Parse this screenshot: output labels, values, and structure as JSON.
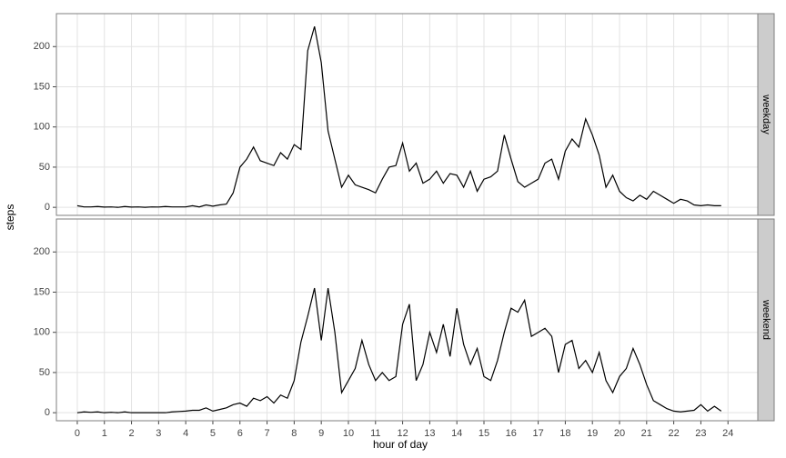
{
  "chart_data": [
    {
      "type": "line",
      "strip": "weekday",
      "ylabel": "steps",
      "color": "#000000",
      "x": [
        0,
        0.25,
        0.5,
        0.75,
        1,
        1.25,
        1.5,
        1.75,
        2,
        2.25,
        2.5,
        2.75,
        3,
        3.25,
        3.5,
        3.75,
        4,
        4.25,
        4.5,
        4.75,
        5,
        5.25,
        5.5,
        5.75,
        6,
        6.25,
        6.5,
        6.75,
        7,
        7.25,
        7.5,
        7.75,
        8,
        8.25,
        8.5,
        8.75,
        9,
        9.25,
        9.5,
        9.75,
        10,
        10.25,
        10.5,
        10.75,
        11,
        11.25,
        11.5,
        11.75,
        12,
        12.25,
        12.5,
        12.75,
        13,
        13.25,
        13.5,
        13.75,
        14,
        14.25,
        14.5,
        14.75,
        15,
        15.25,
        15.5,
        15.75,
        16,
        16.25,
        16.5,
        16.75,
        17,
        17.25,
        17.5,
        17.75,
        18,
        18.25,
        18.5,
        18.75,
        19,
        19.25,
        19.5,
        19.75,
        20,
        20.25,
        20.5,
        20.75,
        21,
        21.25,
        21.5,
        21.75,
        22,
        22.25,
        22.5,
        22.75,
        23,
        23.25,
        23.5,
        23.75
      ],
      "values": [
        2,
        0.5,
        0.5,
        1,
        0.3,
        0.5,
        0,
        1,
        0.3,
        0.5,
        0,
        0.5,
        0.4,
        1,
        0.5,
        0.5,
        0.5,
        2,
        0.5,
        3,
        1.5,
        3,
        4,
        18,
        50,
        60,
        75,
        58,
        55,
        52,
        68,
        60,
        78,
        72,
        195,
        225,
        180,
        95,
        60,
        25,
        40,
        28,
        25,
        22,
        18,
        35,
        50,
        52,
        80,
        45,
        55,
        30,
        35,
        45,
        30,
        42,
        40,
        25,
        45,
        20,
        35,
        38,
        45,
        90,
        60,
        32,
        25,
        30,
        35,
        55,
        60,
        35,
        70,
        85,
        75,
        110,
        90,
        65,
        25,
        40,
        20,
        12,
        8,
        15,
        10,
        20,
        15,
        10,
        5,
        10,
        8,
        3,
        2,
        3,
        2,
        2
      ],
      "xlim": [
        -0.77,
        25.1
      ],
      "ylim": [
        -10,
        241
      ],
      "yticks": [
        0,
        50,
        100,
        150,
        200
      ],
      "grid": true
    },
    {
      "type": "line",
      "strip": "weekend",
      "xlabel": "hour of day",
      "color": "#000000",
      "x": [
        0,
        0.25,
        0.5,
        0.75,
        1,
        1.25,
        1.5,
        1.75,
        2,
        2.25,
        2.5,
        2.75,
        3,
        3.25,
        3.5,
        3.75,
        4,
        4.25,
        4.5,
        4.75,
        5,
        5.25,
        5.5,
        5.75,
        6,
        6.25,
        6.5,
        6.75,
        7,
        7.25,
        7.5,
        7.75,
        8,
        8.25,
        8.5,
        8.75,
        9,
        9.25,
        9.5,
        9.75,
        10,
        10.25,
        10.5,
        10.75,
        11,
        11.25,
        11.5,
        11.75,
        12,
        12.25,
        12.5,
        12.75,
        13,
        13.25,
        13.5,
        13.75,
        14,
        14.25,
        14.5,
        14.75,
        15,
        15.25,
        15.5,
        15.75,
        16,
        16.25,
        16.5,
        16.75,
        17,
        17.25,
        17.5,
        17.75,
        18,
        18.25,
        18.5,
        18.75,
        19,
        19.25,
        19.5,
        19.75,
        20,
        20.25,
        20.5,
        20.75,
        21,
        21.25,
        21.5,
        21.75,
        22,
        22.25,
        22.5,
        22.75,
        23,
        23.25,
        23.5,
        23.75
      ],
      "values": [
        0,
        1,
        0.5,
        1,
        0,
        0.5,
        0,
        1,
        0,
        0,
        0,
        0,
        0,
        0,
        1,
        1.5,
        2,
        3,
        3,
        6,
        2,
        4,
        6,
        10,
        12,
        8,
        18,
        15,
        20,
        12,
        22,
        18,
        40,
        88,
        120,
        155,
        90,
        155,
        100,
        25,
        40,
        55,
        90,
        60,
        40,
        50,
        40,
        45,
        110,
        135,
        40,
        60,
        100,
        75,
        110,
        70,
        130,
        85,
        60,
        80,
        45,
        40,
        65,
        100,
        130,
        125,
        140,
        95,
        100,
        105,
        95,
        50,
        85,
        90,
        55,
        65,
        50,
        75,
        40,
        25,
        45,
        55,
        80,
        60,
        35,
        15,
        10,
        5,
        2,
        1,
        2,
        3,
        10,
        2,
        8,
        2
      ],
      "xlim": [
        -0.77,
        25.1
      ],
      "xticks": [
        0,
        1,
        2,
        3,
        4,
        5,
        6,
        7,
        8,
        9,
        10,
        11,
        12,
        13,
        14,
        15,
        16,
        17,
        18,
        19,
        20,
        21,
        22,
        23,
        24
      ],
      "ylim": [
        -10,
        241
      ],
      "yticks": [
        0,
        50,
        100,
        150,
        200
      ],
      "grid": true
    }
  ]
}
